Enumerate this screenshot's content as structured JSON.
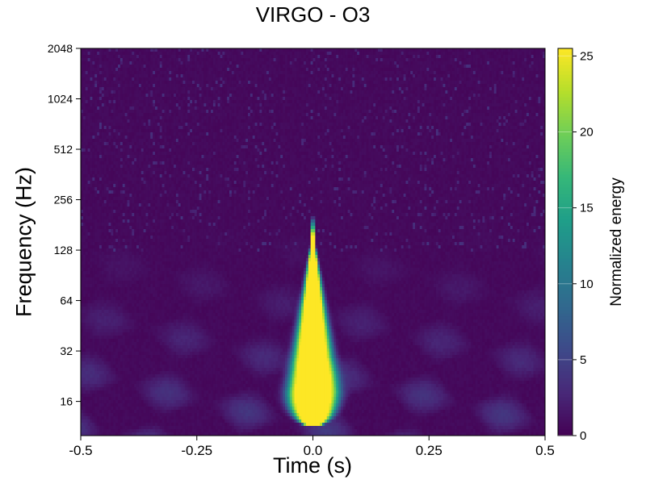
{
  "chart_data": {
    "type": "heatmap",
    "title": "VIRGO - O3",
    "xlabel": "Time (s)",
    "ylabel": "Frequency (Hz)",
    "xlim": [
      -0.5,
      0.5
    ],
    "ylim": [
      10,
      2048
    ],
    "yscale": "log2",
    "x_ticks": [
      -0.5,
      -0.25,
      0.0,
      0.25,
      0.5
    ],
    "x_tick_labels": [
      "-0.5",
      "-0.25",
      "0.0",
      "0.25",
      "0.5"
    ],
    "y_ticks": [
      16,
      32,
      64,
      128,
      256,
      512,
      1024,
      2048
    ],
    "y_tick_labels": [
      "16",
      "32",
      "64",
      "128",
      "256",
      "512",
      "1024",
      "2048"
    ],
    "colorbar": {
      "label": "Normalized energy",
      "range": [
        0,
        25.5
      ],
      "ticks": [
        0,
        5,
        10,
        15,
        20,
        25
      ],
      "tick_labels": [
        "0",
        "5",
        "10",
        "15",
        "20",
        "25"
      ],
      "colormap": "viridis"
    },
    "colormap_stops": [
      "#440154",
      "#482878",
      "#3e4989",
      "#31688e",
      "#26828e",
      "#1f9e89",
      "#35b779",
      "#6ece58",
      "#b5de2b",
      "#fde725"
    ],
    "event": {
      "time": 0.0,
      "freq_low": 18,
      "freq_high": 150,
      "peak_energy": 25.5
    }
  }
}
